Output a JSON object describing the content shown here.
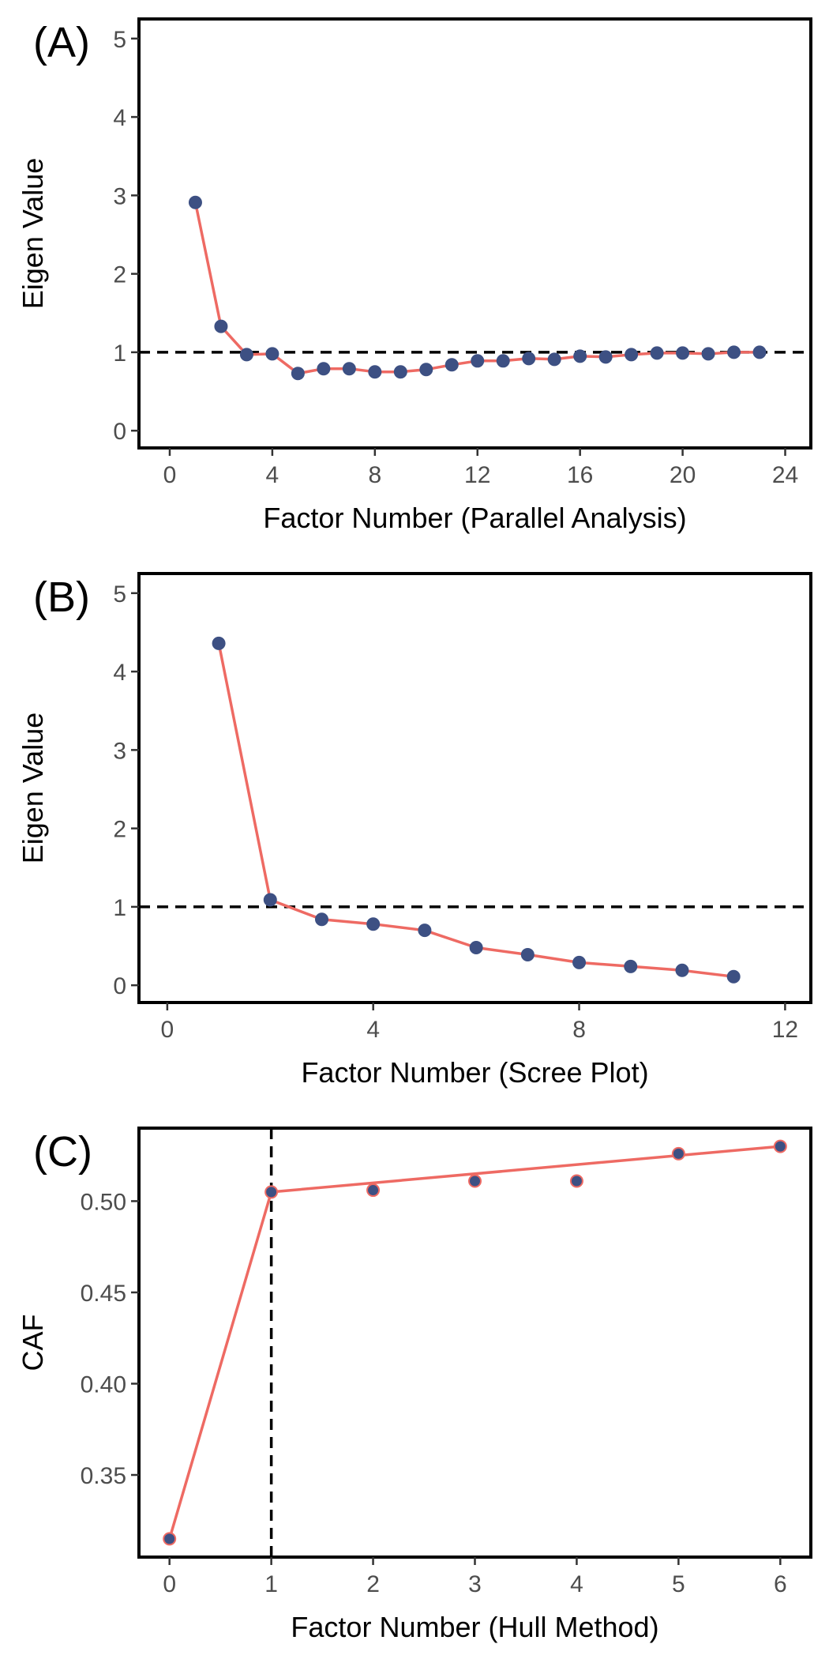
{
  "chart_data": [
    {
      "type": "line",
      "panel_label": "(A)",
      "xlabel": "Factor Number (Parallel Analysis)",
      "ylabel": "Eigen Value",
      "xlim": [
        -1.2,
        25
      ],
      "ylim": [
        -0.22,
        5.25
      ],
      "xticks": [
        0,
        4,
        8,
        12,
        16,
        20,
        24
      ],
      "yticks": [
        0,
        1,
        2,
        3,
        4,
        5
      ],
      "grid": false,
      "reference_line": {
        "axis": "y",
        "value": 1,
        "style": "dashed"
      },
      "x": [
        1,
        2,
        3,
        4,
        5,
        6,
        7,
        8,
        9,
        10,
        11,
        12,
        13,
        14,
        15,
        16,
        17,
        18,
        19,
        20,
        21,
        22,
        23
      ],
      "y": [
        2.91,
        1.33,
        0.97,
        0.98,
        0.73,
        0.79,
        0.79,
        0.75,
        0.75,
        0.78,
        0.84,
        0.89,
        0.89,
        0.92,
        0.91,
        0.95,
        0.94,
        0.97,
        0.99,
        0.99,
        0.98,
        1.0,
        1.0
      ],
      "line_color": "#ee6a63",
      "point_fill": "#3d5083",
      "point_stroke": "#3d5083"
    },
    {
      "type": "line",
      "panel_label": "(B)",
      "xlabel": "Factor Number (Scree Plot)",
      "ylabel": "Eigen Value",
      "xlim": [
        -0.55,
        12.5
      ],
      "ylim": [
        -0.22,
        5.25
      ],
      "xticks": [
        0,
        4,
        8,
        12
      ],
      "yticks": [
        0,
        1,
        2,
        3,
        4,
        5
      ],
      "grid": false,
      "reference_line": {
        "axis": "y",
        "value": 1,
        "style": "dashed"
      },
      "x": [
        1,
        2,
        3,
        4,
        5,
        6,
        7,
        8,
        9,
        10,
        11
      ],
      "y": [
        4.36,
        1.09,
        0.84,
        0.78,
        0.7,
        0.48,
        0.39,
        0.29,
        0.24,
        0.19,
        0.11
      ],
      "line_color": "#ee6a63",
      "point_fill": "#3d5083",
      "point_stroke": "#3d5083"
    },
    {
      "type": "line",
      "panel_label": "(C)",
      "xlabel": "Factor Number (Hull Method)",
      "ylabel": "CAF",
      "xlim": [
        -0.3,
        6.3
      ],
      "ylim": [
        0.305,
        0.54
      ],
      "xticks": [
        0,
        1,
        2,
        3,
        4,
        5,
        6
      ],
      "yticks": [
        0.35,
        0.4,
        0.45,
        0.5
      ],
      "ytick_labels": [
        "0.35",
        "0.40",
        "0.45",
        "0.50"
      ],
      "grid": false,
      "reference_line": {
        "axis": "x",
        "value": 1,
        "style": "dashed"
      },
      "x": [
        0,
        1,
        2,
        3,
        4,
        5,
        6
      ],
      "y": [
        0.315,
        0.505,
        0.506,
        0.511,
        0.511,
        0.526,
        0.53
      ],
      "hull_x": [
        0,
        1,
        6
      ],
      "hull_y": [
        0.315,
        0.505,
        0.53
      ],
      "line_color": "#ee6a63",
      "point_fill": "#3d5083",
      "point_stroke": "#ee6a63"
    }
  ]
}
